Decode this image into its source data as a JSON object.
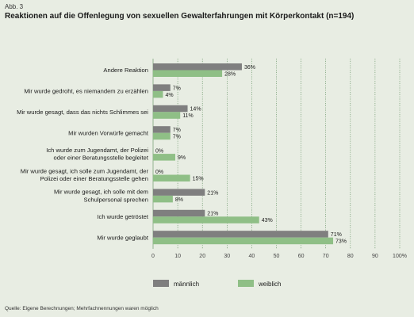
{
  "figure_label": "Abb. 3",
  "title": "Reaktionen auf die Offenlegung von sexuellen Gewalterfahrungen mit Körperkontakt (n=194)",
  "source": "Quelle: Eigene Berechnungen; Mehrfachnennungen waren möglich",
  "colors": {
    "background": "#e8ede3",
    "männlich": "#7f7f7f",
    "weiblich": "#8fbf86",
    "grid": "#5a8a5a"
  },
  "chart_data": {
    "type": "bar",
    "orientation": "horizontal",
    "title": "Reaktionen auf die Offenlegung von sexuellen Gewalterfahrungen mit Körperkontakt (n=194)",
    "categories": [
      [
        "Andere Reaktion"
      ],
      [
        "Mir wurde gedroht, es niemandem zu erzählen"
      ],
      [
        "Mir wurde gesagt, dass das nichts Schlimmes sei"
      ],
      [
        "Mir wurden Vorwürfe gemacht"
      ],
      [
        "Ich wurde zum Jugendamt, der Polizei",
        "oder einer Beratungsstelle begleitet"
      ],
      [
        "Mir wurde gesagt, ich solle zum Jugendamt, der",
        "Polizei oder einer Beratungsstelle gehen"
      ],
      [
        "Mir wurde gesagt, ich solle mit dem",
        "Schulpersonal sprechen"
      ],
      [
        "Ich wurde getröstet"
      ],
      [
        "Mir wurde geglaubt"
      ]
    ],
    "series": [
      {
        "name": "männlich",
        "values": [
          36,
          7,
          14,
          7,
          0,
          0,
          21,
          21,
          71
        ]
      },
      {
        "name": "weiblich",
        "values": [
          28,
          4,
          11,
          7,
          9,
          15,
          8,
          43,
          73
        ]
      }
    ],
    "xlim": [
      0,
      100
    ],
    "xticks": [
      "0",
      "10",
      "20",
      "30",
      "40",
      "50",
      "60",
      "70",
      "80",
      "90",
      "100%"
    ],
    "value_suffix": "%",
    "grid": true,
    "legend": "bottom-center"
  }
}
